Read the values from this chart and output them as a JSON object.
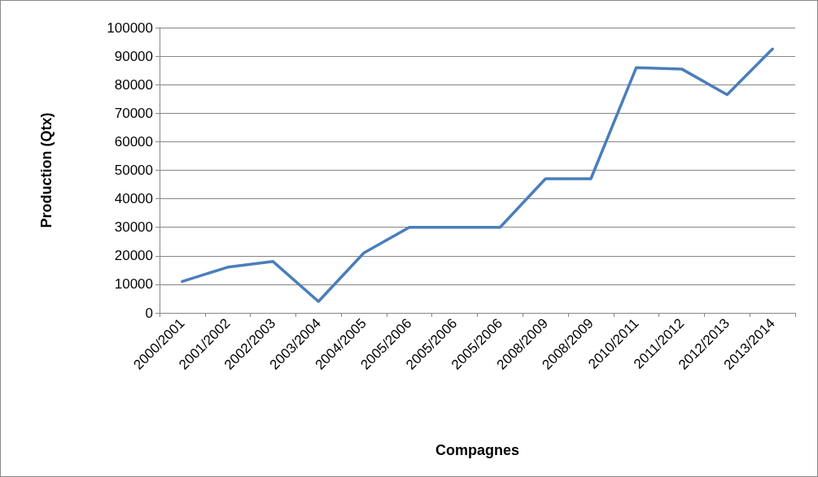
{
  "chart_data": {
    "type": "line",
    "xlabel": "Compagnes",
    "ylabel": "Production (Qtx)",
    "categories": [
      "2000/2001",
      "2001/2002",
      "2002/2003",
      "2003/2004",
      "2004/2005",
      "2005/2006",
      "2005/2006",
      "2005/2006",
      "2008/2009",
      "2008/2009",
      "2010/2011",
      "2011/2012",
      "2012/2013",
      "2013/2014"
    ],
    "series": [
      {
        "color": "#4a7ebb",
        "values": [
          11000,
          16000,
          18000,
          4000,
          21000,
          30000,
          30000,
          30000,
          47000,
          47000,
          86000,
          85500,
          76500,
          92500
        ]
      }
    ],
    "ylim": [
      0,
      100000
    ],
    "yticks": [
      0,
      10000,
      20000,
      30000,
      40000,
      50000,
      60000,
      70000,
      80000,
      90000,
      100000
    ],
    "grid": "y",
    "marker": "none",
    "line_style": "solid"
  }
}
